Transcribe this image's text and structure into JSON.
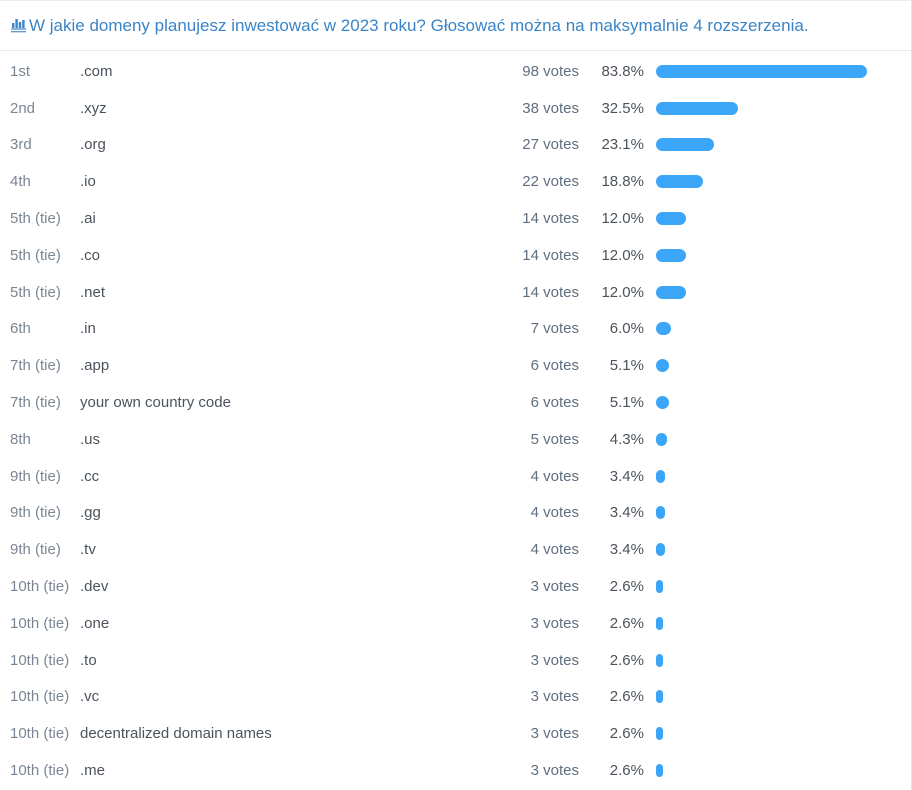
{
  "header": {
    "title": "W jakie domeny planujesz inwestować w 2023 roku? Głosować można na maksymalnie 4 rozszerzenia.",
    "icon": "bar-chart-icon"
  },
  "colors": {
    "title_link": "#3a84c7",
    "bar": "#3ba5f7",
    "rank_text": "#7b8694",
    "option_text": "#4b535c",
    "votes_text": "#5f6e80",
    "separator": "#e8e8ea"
  },
  "chart_data": {
    "type": "bar",
    "orientation": "horizontal",
    "title": "W jakie domeny planujesz inwestować w 2023 roku? Głosować można na maksymalnie 4 rozszerzenia.",
    "unit": "votes",
    "percent_scale_max": 100,
    "legend": "none",
    "rows": [
      {
        "rank": "1st",
        "option": ".com",
        "votes": 98,
        "votes_label": "98 votes",
        "percent": 83.8,
        "percent_label": "83.8%"
      },
      {
        "rank": "2nd",
        "option": ".xyz",
        "votes": 38,
        "votes_label": "38 votes",
        "percent": 32.5,
        "percent_label": "32.5%"
      },
      {
        "rank": "3rd",
        "option": ".org",
        "votes": 27,
        "votes_label": "27 votes",
        "percent": 23.1,
        "percent_label": "23.1%"
      },
      {
        "rank": "4th",
        "option": ".io",
        "votes": 22,
        "votes_label": "22 votes",
        "percent": 18.8,
        "percent_label": "18.8%"
      },
      {
        "rank": "5th (tie)",
        "option": ".ai",
        "votes": 14,
        "votes_label": "14 votes",
        "percent": 12.0,
        "percent_label": "12.0%"
      },
      {
        "rank": "5th (tie)",
        "option": ".co",
        "votes": 14,
        "votes_label": "14 votes",
        "percent": 12.0,
        "percent_label": "12.0%"
      },
      {
        "rank": "5th (tie)",
        "option": ".net",
        "votes": 14,
        "votes_label": "14 votes",
        "percent": 12.0,
        "percent_label": "12.0%"
      },
      {
        "rank": "6th",
        "option": ".in",
        "votes": 7,
        "votes_label": "7 votes",
        "percent": 6.0,
        "percent_label": "6.0%"
      },
      {
        "rank": "7th (tie)",
        "option": ".app",
        "votes": 6,
        "votes_label": "6 votes",
        "percent": 5.1,
        "percent_label": "5.1%"
      },
      {
        "rank": "7th (tie)",
        "option": "your own country code",
        "votes": 6,
        "votes_label": "6 votes",
        "percent": 5.1,
        "percent_label": "5.1%"
      },
      {
        "rank": "8th",
        "option": ".us",
        "votes": 5,
        "votes_label": "5 votes",
        "percent": 4.3,
        "percent_label": "4.3%"
      },
      {
        "rank": "9th (tie)",
        "option": ".cc",
        "votes": 4,
        "votes_label": "4 votes",
        "percent": 3.4,
        "percent_label": "3.4%"
      },
      {
        "rank": "9th (tie)",
        "option": ".gg",
        "votes": 4,
        "votes_label": "4 votes",
        "percent": 3.4,
        "percent_label": "3.4%"
      },
      {
        "rank": "9th (tie)",
        "option": ".tv",
        "votes": 4,
        "votes_label": "4 votes",
        "percent": 3.4,
        "percent_label": "3.4%"
      },
      {
        "rank": "10th (tie)",
        "option": ".dev",
        "votes": 3,
        "votes_label": "3 votes",
        "percent": 2.6,
        "percent_label": "2.6%"
      },
      {
        "rank": "10th (tie)",
        "option": ".one",
        "votes": 3,
        "votes_label": "3 votes",
        "percent": 2.6,
        "percent_label": "2.6%"
      },
      {
        "rank": "10th (tie)",
        "option": ".to",
        "votes": 3,
        "votes_label": "3 votes",
        "percent": 2.6,
        "percent_label": "2.6%"
      },
      {
        "rank": "10th (tie)",
        "option": ".vc",
        "votes": 3,
        "votes_label": "3 votes",
        "percent": 2.6,
        "percent_label": "2.6%"
      },
      {
        "rank": "10th (tie)",
        "option": "decentralized domain names",
        "votes": 3,
        "votes_label": "3 votes",
        "percent": 2.6,
        "percent_label": "2.6%"
      },
      {
        "rank": "10th (tie)",
        "option": ".me",
        "votes": 3,
        "votes_label": "3 votes",
        "percent": 2.6,
        "percent_label": "2.6%"
      }
    ]
  }
}
